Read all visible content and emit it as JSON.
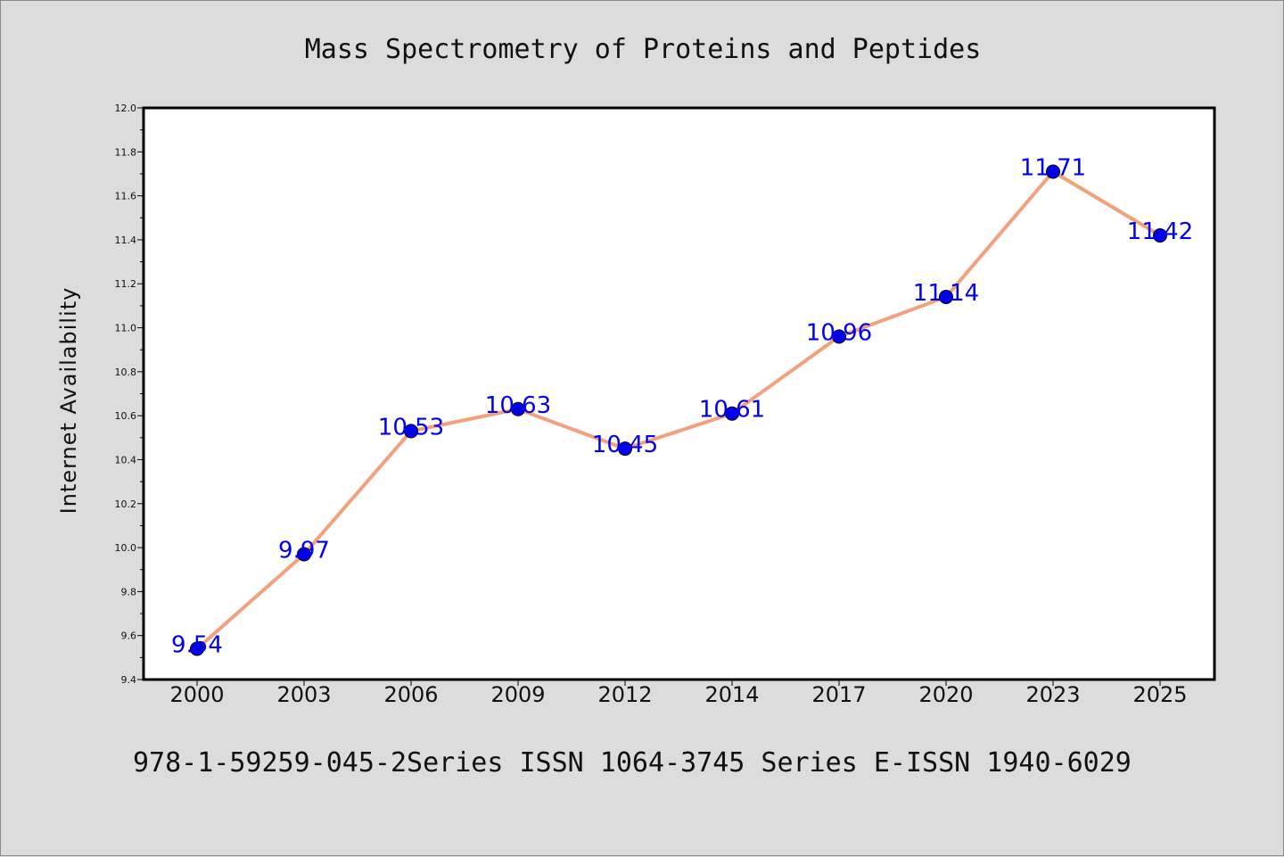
{
  "chart_data": {
    "type": "line",
    "title": "Mass Spectrometry of Proteins and Peptides",
    "xlabel": "",
    "ylabel": "Internet Availability",
    "categories": [
      "2000",
      "2003",
      "2006",
      "2009",
      "2012",
      "2014",
      "2017",
      "2020",
      "2023",
      "2025"
    ],
    "series": [
      {
        "values": [
          9.54,
          9.97,
          10.53,
          10.63,
          10.45,
          10.61,
          10.96,
          11.14,
          11.71,
          11.42
        ],
        "line_color": "#f4a07c",
        "marker_color": "#0000ee",
        "label_color": "#0000ee"
      }
    ],
    "data_labels": [
      "9.54",
      "9.97",
      "10.53",
      "10.63",
      "10.45",
      "10.61",
      "10.96",
      "11.14",
      "11.71",
      "11.42"
    ],
    "ylim": [
      9.4,
      12.0
    ],
    "y_ticks": [
      "9.4",
      "9.6",
      "9.8",
      "10.0",
      "10.2",
      "10.4",
      "10.6",
      "10.8",
      "11.0",
      "11.2",
      "11.4",
      "11.6",
      "11.8",
      "12.0"
    ],
    "grid": false,
    "legend": false
  },
  "footer": {
    "text": "978-1-59259-045-2Series ISSN 1064-3745 Series E-ISSN 1940-6029"
  },
  "colors": {
    "background": "#dcdcdc",
    "plot_background": "#ffffff",
    "axis": "#000000"
  }
}
